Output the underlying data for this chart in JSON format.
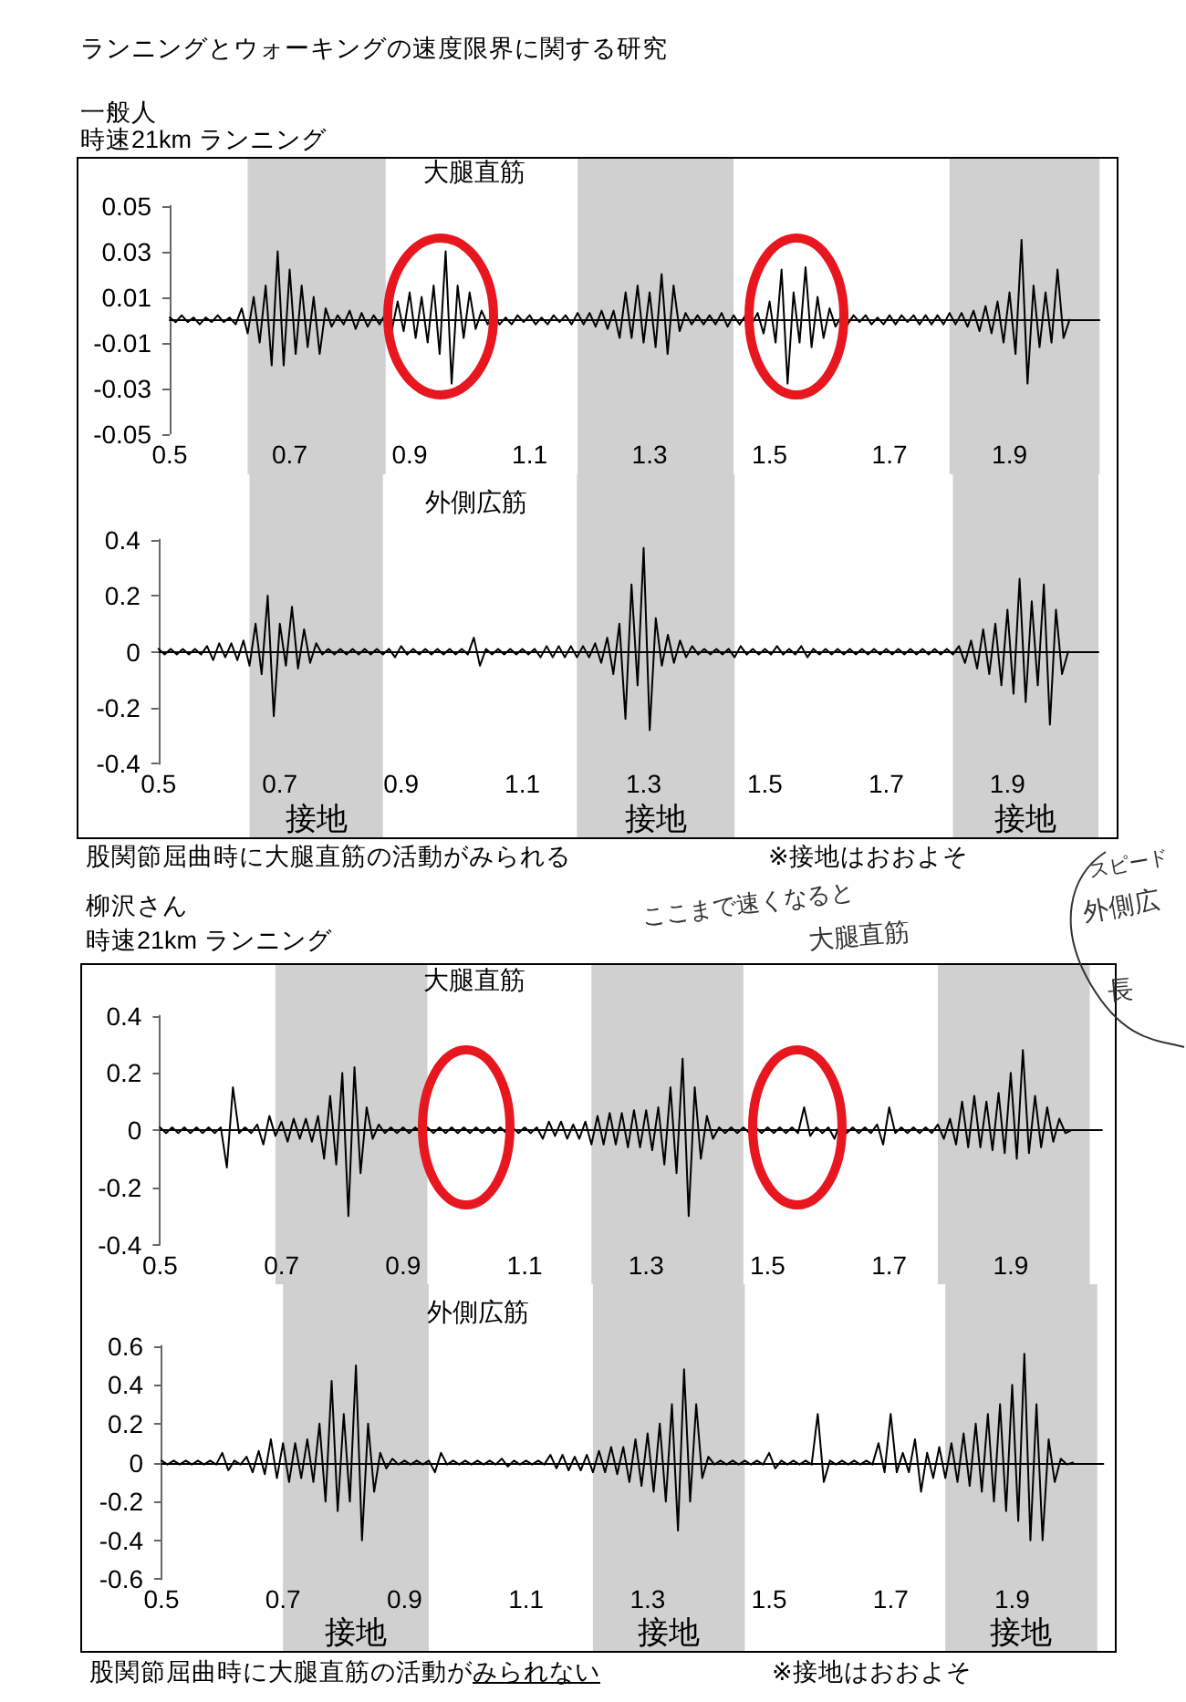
{
  "chart_data": [
    {
      "type": "line",
      "title": "大腿直筋",
      "annotations": [
        "ランニングとウォーキングの速度限界に関する研究",
        "一般人",
        "時速21km ランニング"
      ],
      "color": "#000000",
      "marker": "none",
      "x": [
        0.5,
        0.51,
        0.52,
        0.53,
        0.54,
        0.55,
        0.56,
        0.57,
        0.58,
        0.59,
        0.6,
        0.61,
        0.62,
        0.63,
        0.64,
        0.65,
        0.66,
        0.67,
        0.68,
        0.69,
        0.7,
        0.71,
        0.72,
        0.73,
        0.74,
        0.75,
        0.76,
        0.77,
        0.78,
        0.79,
        0.8,
        0.81,
        0.82,
        0.83,
        0.84,
        0.85,
        0.86,
        0.87,
        0.88,
        0.89,
        0.9,
        0.91,
        0.92,
        0.93,
        0.94,
        0.95,
        0.96,
        0.97,
        0.98,
        0.99,
        1,
        1.01,
        1.02,
        1.03,
        1.04,
        1.05,
        1.06,
        1.07,
        1.08,
        1.09,
        1.1,
        1.11,
        1.12,
        1.13,
        1.14,
        1.15,
        1.16,
        1.17,
        1.18,
        1.19,
        1.2,
        1.21,
        1.22,
        1.23,
        1.24,
        1.25,
        1.26,
        1.27,
        1.28,
        1.29,
        1.3,
        1.31,
        1.32,
        1.33,
        1.34,
        1.35,
        1.36,
        1.37,
        1.38,
        1.39,
        1.4,
        1.41,
        1.42,
        1.43,
        1.44,
        1.45,
        1.46,
        1.47,
        1.48,
        1.49,
        1.5,
        1.51,
        1.52,
        1.53,
        1.54,
        1.55,
        1.56,
        1.57,
        1.58,
        1.59,
        1.6,
        1.61,
        1.62,
        1.63,
        1.64,
        1.65,
        1.66,
        1.67,
        1.68,
        1.69,
        1.7,
        1.71,
        1.72,
        1.73,
        1.74,
        1.75,
        1.76,
        1.77,
        1.78,
        1.79,
        1.8,
        1.81,
        1.82,
        1.83,
        1.84,
        1.85,
        1.86,
        1.87,
        1.88,
        1.89,
        1.9,
        1.91,
        1.92,
        1.93,
        1.94,
        1.95,
        1.96,
        1.97,
        1.98,
        1.99,
        2
      ],
      "values": [
        0.001,
        -0.001,
        0.002,
        -0.001,
        0.001,
        -0.002,
        0.001,
        -0.001,
        0.002,
        -0.001,
        0.001,
        -0.002,
        0.005,
        -0.006,
        0.01,
        -0.01,
        0.015,
        -0.02,
        0.03,
        -0.02,
        0.022,
        -0.015,
        0.015,
        -0.012,
        0.01,
        -0.015,
        0.005,
        -0.003,
        0.002,
        -0.002,
        0.004,
        -0.004,
        0.003,
        -0.003,
        0.002,
        -0.002,
        0.003,
        -0.005,
        0.008,
        -0.005,
        0.012,
        -0.008,
        0.01,
        -0.01,
        0.015,
        -0.015,
        0.03,
        -0.028,
        0.015,
        -0.008,
        0.012,
        -0.004,
        0.004,
        -0.002,
        0.002,
        -0.002,
        0.001,
        -0.002,
        0.002,
        -0.001,
        0.002,
        -0.002,
        0.001,
        -0.002,
        0.002,
        -0.001,
        0.002,
        -0.002,
        0.003,
        -0.002,
        0.003,
        -0.003,
        0.004,
        -0.004,
        0.004,
        -0.008,
        0.012,
        -0.008,
        0.015,
        -0.01,
        0.012,
        -0.012,
        0.02,
        -0.015,
        0.015,
        -0.005,
        0.003,
        -0.002,
        0.002,
        -0.002,
        0.002,
        -0.002,
        0.003,
        -0.003,
        0.002,
        -0.002,
        0.002,
        -0.002,
        0.003,
        -0.006,
        0.008,
        -0.01,
        0.022,
        -0.028,
        0.012,
        -0.01,
        0.023,
        -0.012,
        0.01,
        -0.008,
        0.005,
        -0.003,
        0.002,
        -0.002,
        0.002,
        -0.001,
        0.002,
        -0.002,
        0.001,
        -0.002,
        0.002,
        -0.002,
        0.002,
        -0.001,
        0.002,
        -0.002,
        0.002,
        -0.002,
        0.002,
        -0.002,
        0.003,
        -0.002,
        0.003,
        -0.003,
        0.004,
        -0.005,
        0.006,
        -0.006,
        0.008,
        -0.01,
        0.012,
        -0.015,
        0.035,
        -0.028,
        0.015,
        -0.012,
        0.012,
        -0.01,
        0.022,
        -0.008,
        0
      ],
      "xlim": [
        0.5,
        2.05
      ],
      "xticks": [
        0.5,
        0.7,
        0.9,
        1.1,
        1.3,
        1.5,
        1.7,
        1.9
      ],
      "ylim": [
        -0.05,
        0.05
      ],
      "yticks": [
        -0.05,
        -0.03,
        -0.01,
        0.01,
        0.03,
        0.05
      ],
      "bands": [
        {
          "axis": "x",
          "from": 0.63,
          "to": 0.86,
          "color": "#d0d0d0"
        },
        {
          "axis": "x",
          "from": 1.18,
          "to": 1.44,
          "color": "#d0d0d0"
        },
        {
          "axis": "x",
          "from": 1.8,
          "to": 2.05,
          "color": "#d0d0d0"
        }
      ]
    },
    {
      "type": "line",
      "title": "外側広筋",
      "annotations": [
        "股関節屈曲時に大腿直筋の活動がみられる",
        "※接地はおおよそ"
      ],
      "color": "#000000",
      "marker": "none",
      "x": [
        0.5,
        0.51,
        0.52,
        0.53,
        0.54,
        0.55,
        0.56,
        0.57,
        0.58,
        0.59,
        0.6,
        0.61,
        0.62,
        0.63,
        0.64,
        0.65,
        0.66,
        0.67,
        0.68,
        0.69,
        0.7,
        0.71,
        0.72,
        0.73,
        0.74,
        0.75,
        0.76,
        0.77,
        0.78,
        0.79,
        0.8,
        0.81,
        0.82,
        0.83,
        0.84,
        0.85,
        0.86,
        0.87,
        0.88,
        0.89,
        0.9,
        0.91,
        0.92,
        0.93,
        0.94,
        0.95,
        0.96,
        0.97,
        0.98,
        0.99,
        1,
        1.01,
        1.02,
        1.03,
        1.04,
        1.05,
        1.06,
        1.07,
        1.08,
        1.09,
        1.1,
        1.11,
        1.12,
        1.13,
        1.14,
        1.15,
        1.16,
        1.17,
        1.18,
        1.19,
        1.2,
        1.21,
        1.22,
        1.23,
        1.24,
        1.25,
        1.26,
        1.27,
        1.28,
        1.29,
        1.3,
        1.31,
        1.32,
        1.33,
        1.34,
        1.35,
        1.36,
        1.37,
        1.38,
        1.39,
        1.4,
        1.41,
        1.42,
        1.43,
        1.44,
        1.45,
        1.46,
        1.47,
        1.48,
        1.49,
        1.5,
        1.51,
        1.52,
        1.53,
        1.54,
        1.55,
        1.56,
        1.57,
        1.58,
        1.59,
        1.6,
        1.61,
        1.62,
        1.63,
        1.64,
        1.65,
        1.66,
        1.67,
        1.68,
        1.69,
        1.7,
        1.71,
        1.72,
        1.73,
        1.74,
        1.75,
        1.76,
        1.77,
        1.78,
        1.79,
        1.8,
        1.81,
        1.82,
        1.83,
        1.84,
        1.85,
        1.86,
        1.87,
        1.88,
        1.89,
        1.9,
        1.91,
        1.92,
        1.93,
        1.94,
        1.95,
        1.96,
        1.97,
        1.98,
        1.99,
        2
      ],
      "values": [
        0.01,
        -0.01,
        0.01,
        -0.01,
        0.01,
        -0.01,
        0.01,
        -0.01,
        0.02,
        -0.03,
        0.03,
        -0.02,
        0.03,
        -0.03,
        0.04,
        -0.05,
        0.1,
        -0.08,
        0.2,
        -0.23,
        0.1,
        -0.05,
        0.16,
        -0.06,
        0.08,
        -0.04,
        0.03,
        -0.01,
        0.01,
        -0.01,
        0.01,
        -0.01,
        0.01,
        -0.01,
        0.01,
        -0.01,
        0.01,
        -0.01,
        0.01,
        -0.02,
        0.02,
        -0.01,
        0.01,
        -0.01,
        0.01,
        -0.01,
        0.01,
        -0.01,
        0.01,
        -0.01,
        0.01,
        -0.01,
        0.05,
        -0.05,
        0.01,
        -0.01,
        0.01,
        -0.01,
        0.01,
        -0.01,
        0.01,
        -0.01,
        0.01,
        -0.02,
        0.02,
        -0.02,
        0.02,
        -0.02,
        0.02,
        -0.02,
        0.02,
        -0.02,
        0.03,
        -0.04,
        0.05,
        -0.08,
        0.1,
        -0.24,
        0.24,
        -0.12,
        0.37,
        -0.28,
        0.12,
        -0.05,
        0.06,
        -0.04,
        0.04,
        -0.02,
        0.02,
        -0.01,
        0.01,
        -0.01,
        0.01,
        -0.01,
        0.01,
        -0.02,
        0.02,
        -0.01,
        0.01,
        -0.01,
        0.01,
        -0.01,
        0.02,
        -0.01,
        0.01,
        -0.01,
        0.02,
        -0.02,
        0.01,
        -0.01,
        0.01,
        -0.01,
        0.01,
        -0.01,
        0.01,
        -0.01,
        0.01,
        -0.01,
        0.01,
        -0.01,
        0.01,
        -0.01,
        0.01,
        -0.01,
        0.01,
        -0.01,
        0.01,
        -0.01,
        0.01,
        -0.01,
        0.01,
        -0.01,
        0.02,
        -0.04,
        0.04,
        -0.06,
        0.08,
        -0.08,
        0.1,
        -0.12,
        0.15,
        -0.15,
        0.26,
        -0.18,
        0.18,
        -0.12,
        0.24,
        -0.26,
        0.15,
        -0.08,
        0
      ],
      "xlim": [
        0.5,
        2.05
      ],
      "xticks": [
        0.5,
        0.7,
        0.9,
        1.1,
        1.3,
        1.5,
        1.7,
        1.9
      ],
      "ylim": [
        -0.4,
        0.4
      ],
      "yticks": [
        -0.4,
        -0.2,
        0,
        0.2,
        0.4
      ],
      "bands": [
        {
          "axis": "x",
          "from": 0.65,
          "to": 0.87,
          "label": "接地",
          "color": "#d0d0d0"
        },
        {
          "axis": "x",
          "from": 1.19,
          "to": 1.45,
          "label": "接地",
          "color": "#d0d0d0"
        },
        {
          "axis": "x",
          "from": 1.81,
          "to": 2.05,
          "label": "接地",
          "color": "#d0d0d0"
        }
      ]
    },
    {
      "type": "line",
      "title": "大腿直筋",
      "annotations": [
        "柳沢さん",
        "時速21km ランニング",
        "ここまで速くなると",
        "大腿直筋",
        "スピード",
        "外側広",
        "長"
      ],
      "color": "#000000",
      "marker": "none",
      "x": [
        0.5,
        0.51,
        0.52,
        0.53,
        0.54,
        0.55,
        0.56,
        0.57,
        0.58,
        0.59,
        0.6,
        0.61,
        0.62,
        0.63,
        0.64,
        0.65,
        0.66,
        0.67,
        0.68,
        0.69,
        0.7,
        0.71,
        0.72,
        0.73,
        0.74,
        0.75,
        0.76,
        0.77,
        0.78,
        0.79,
        0.8,
        0.81,
        0.82,
        0.83,
        0.84,
        0.85,
        0.86,
        0.87,
        0.88,
        0.89,
        0.9,
        0.91,
        0.92,
        0.93,
        0.94,
        0.95,
        0.96,
        0.97,
        0.98,
        0.99,
        1,
        1.01,
        1.02,
        1.03,
        1.04,
        1.05,
        1.06,
        1.07,
        1.08,
        1.09,
        1.1,
        1.11,
        1.12,
        1.13,
        1.14,
        1.15,
        1.16,
        1.17,
        1.18,
        1.19,
        1.2,
        1.21,
        1.22,
        1.23,
        1.24,
        1.25,
        1.26,
        1.27,
        1.28,
        1.29,
        1.3,
        1.31,
        1.32,
        1.33,
        1.34,
        1.35,
        1.36,
        1.37,
        1.38,
        1.39,
        1.4,
        1.41,
        1.42,
        1.43,
        1.44,
        1.45,
        1.46,
        1.47,
        1.48,
        1.49,
        1.5,
        1.51,
        1.52,
        1.53,
        1.54,
        1.55,
        1.56,
        1.57,
        1.58,
        1.59,
        1.6,
        1.61,
        1.62,
        1.63,
        1.64,
        1.65,
        1.66,
        1.67,
        1.68,
        1.69,
        1.7,
        1.71,
        1.72,
        1.73,
        1.74,
        1.75,
        1.76,
        1.77,
        1.78,
        1.79,
        1.8,
        1.81,
        1.82,
        1.83,
        1.84,
        1.85,
        1.86,
        1.87,
        1.88,
        1.89,
        1.9,
        1.91,
        1.92,
        1.93,
        1.94,
        1.95,
        1.96,
        1.97,
        1.98,
        1.99,
        2
      ],
      "values": [
        0.01,
        -0.01,
        0.01,
        -0.01,
        0.01,
        -0.01,
        0.01,
        -0.01,
        0.01,
        -0.01,
        0.01,
        -0.13,
        0.15,
        -0.01,
        0.01,
        -0.01,
        0.02,
        -0.05,
        0.05,
        -0.02,
        0.03,
        -0.04,
        0.04,
        -0.03,
        0.04,
        -0.04,
        0.05,
        -0.1,
        0.12,
        -0.12,
        0.2,
        -0.3,
        0.22,
        -0.15,
        0.08,
        -0.03,
        0.02,
        -0.01,
        0.01,
        -0.01,
        0.01,
        -0.01,
        0.01,
        -0.01,
        0.01,
        -0.01,
        0.01,
        -0.01,
        0.01,
        -0.01,
        0.01,
        -0.01,
        0.01,
        -0.01,
        0.01,
        -0.01,
        0.01,
        -0.01,
        0.01,
        -0.01,
        0.01,
        -0.01,
        0.01,
        -0.03,
        0.03,
        -0.02,
        0.03,
        -0.03,
        0.02,
        -0.03,
        0.03,
        -0.05,
        0.05,
        -0.05,
        0.06,
        -0.05,
        0.06,
        -0.06,
        0.07,
        -0.06,
        0.07,
        -0.07,
        0.08,
        -0.12,
        0.15,
        -0.15,
        0.25,
        -0.3,
        0.15,
        -0.1,
        0.05,
        -0.03,
        0.01,
        -0.01,
        0.01,
        -0.01,
        0.01,
        -0.01,
        0.01,
        -0.01,
        0.01,
        -0.01,
        0.01,
        -0.01,
        0.01,
        -0.01,
        0.08,
        -0.02,
        0.01,
        -0.01,
        0.01,
        -0.03,
        0.03,
        -0.01,
        0.01,
        -0.01,
        0.01,
        -0.01,
        0.02,
        -0.05,
        0.08,
        -0.01,
        0.01,
        -0.01,
        0.01,
        -0.01,
        0.01,
        -0.01,
        0.02,
        -0.03,
        0.04,
        -0.05,
        0.1,
        -0.06,
        0.12,
        -0.06,
        0.1,
        -0.07,
        0.13,
        -0.08,
        0.2,
        -0.1,
        0.28,
        -0.08,
        0.12,
        -0.06,
        0.08,
        -0.04,
        0.04,
        -0.01,
        0
      ],
      "xlim": [
        0.5,
        2.05
      ],
      "xticks": [
        0.5,
        0.7,
        0.9,
        1.1,
        1.3,
        1.5,
        1.7,
        1.9
      ],
      "ylim": [
        -0.4,
        0.4
      ],
      "yticks": [
        -0.4,
        -0.2,
        0,
        0.2,
        0.4
      ],
      "bands": [
        {
          "axis": "x",
          "from": 0.69,
          "to": 0.94,
          "color": "#d0d0d0"
        },
        {
          "axis": "x",
          "from": 1.21,
          "to": 1.46,
          "color": "#d0d0d0"
        },
        {
          "axis": "x",
          "from": 1.78,
          "to": 2.03,
          "color": "#d0d0d0"
        }
      ]
    },
    {
      "type": "line",
      "title": "外側広筋",
      "annotations": [
        "股関節屈曲時に大腿直筋の活動が",
        "みられない",
        "※接地はおおよそ"
      ],
      "color": "#000000",
      "marker": "none",
      "x": [
        0.5,
        0.51,
        0.52,
        0.53,
        0.54,
        0.55,
        0.56,
        0.57,
        0.58,
        0.59,
        0.6,
        0.61,
        0.62,
        0.63,
        0.64,
        0.65,
        0.66,
        0.67,
        0.68,
        0.69,
        0.7,
        0.71,
        0.72,
        0.73,
        0.74,
        0.75,
        0.76,
        0.77,
        0.78,
        0.79,
        0.8,
        0.81,
        0.82,
        0.83,
        0.84,
        0.85,
        0.86,
        0.87,
        0.88,
        0.89,
        0.9,
        0.91,
        0.92,
        0.93,
        0.94,
        0.95,
        0.96,
        0.97,
        0.98,
        0.99,
        1,
        1.01,
        1.02,
        1.03,
        1.04,
        1.05,
        1.06,
        1.07,
        1.08,
        1.09,
        1.1,
        1.11,
        1.12,
        1.13,
        1.14,
        1.15,
        1.16,
        1.17,
        1.18,
        1.19,
        1.2,
        1.21,
        1.22,
        1.23,
        1.24,
        1.25,
        1.26,
        1.27,
        1.28,
        1.29,
        1.3,
        1.31,
        1.32,
        1.33,
        1.34,
        1.35,
        1.36,
        1.37,
        1.38,
        1.39,
        1.4,
        1.41,
        1.42,
        1.43,
        1.44,
        1.45,
        1.46,
        1.47,
        1.48,
        1.49,
        1.5,
        1.51,
        1.52,
        1.53,
        1.54,
        1.55,
        1.56,
        1.57,
        1.58,
        1.59,
        1.6,
        1.61,
        1.62,
        1.63,
        1.64,
        1.65,
        1.66,
        1.67,
        1.68,
        1.69,
        1.7,
        1.71,
        1.72,
        1.73,
        1.74,
        1.75,
        1.76,
        1.77,
        1.78,
        1.79,
        1.8,
        1.81,
        1.82,
        1.83,
        1.84,
        1.85,
        1.86,
        1.87,
        1.88,
        1.89,
        1.9,
        1.91,
        1.92,
        1.93,
        1.94,
        1.95,
        1.96,
        1.97,
        1.98,
        1.99,
        2
      ],
      "values": [
        0.01,
        -0.01,
        0.01,
        -0.01,
        0.01,
        -0.01,
        0.01,
        -0.01,
        0.01,
        -0.01,
        0.05,
        -0.04,
        0.01,
        -0.01,
        0.03,
        -0.05,
        0.06,
        -0.06,
        0.12,
        -0.08,
        0.1,
        -0.1,
        0.1,
        -0.08,
        0.12,
        -0.1,
        0.2,
        -0.2,
        0.42,
        -0.25,
        0.25,
        -0.2,
        0.5,
        -0.4,
        0.2,
        -0.15,
        0.05,
        -0.03,
        0.02,
        -0.01,
        0.01,
        -0.01,
        0.01,
        -0.01,
        0.01,
        -0.05,
        0.05,
        -0.01,
        0.01,
        -0.01,
        0.01,
        -0.01,
        0.01,
        -0.01,
        0.01,
        -0.01,
        0.02,
        -0.02,
        0.01,
        -0.01,
        0.01,
        -0.01,
        0.01,
        -0.01,
        0.04,
        -0.03,
        0.04,
        -0.04,
        0.03,
        -0.04,
        0.04,
        -0.05,
        0.06,
        -0.05,
        0.08,
        -0.06,
        0.08,
        -0.1,
        0.12,
        -0.12,
        0.15,
        -0.15,
        0.2,
        -0.2,
        0.3,
        -0.35,
        0.48,
        -0.2,
        0.3,
        -0.08,
        0.03,
        -0.01,
        0.01,
        -0.01,
        0.01,
        -0.01,
        0.01,
        -0.01,
        0.01,
        -0.01,
        0.05,
        -0.03,
        0.01,
        -0.01,
        0.01,
        -0.01,
        0.01,
        -0.01,
        0.25,
        -0.1,
        0.01,
        -0.01,
        0.01,
        -0.01,
        0.01,
        -0.01,
        0.01,
        -0.01,
        0.1,
        -0.05,
        0.25,
        -0.05,
        0.05,
        -0.05,
        0.12,
        -0.15,
        0.05,
        -0.08,
        0.08,
        -0.08,
        0.1,
        -0.1,
        0.15,
        -0.12,
        0.2,
        -0.15,
        0.25,
        -0.2,
        0.3,
        -0.25,
        0.4,
        -0.3,
        0.56,
        -0.4,
        0.3,
        -0.4,
        0.12,
        -0.1,
        0.02,
        -0.01,
        0
      ],
      "xlim": [
        0.5,
        2.05
      ],
      "xticks": [
        0.5,
        0.7,
        0.9,
        1.1,
        1.3,
        1.5,
        1.7,
        1.9
      ],
      "ylim": [
        -0.6,
        0.6
      ],
      "yticks": [
        -0.6,
        -0.4,
        -0.2,
        0,
        0.2,
        0.4,
        0.6
      ],
      "bands": [
        {
          "axis": "x",
          "from": 0.7,
          "to": 0.94,
          "label": "接地",
          "color": "#d0d0d0"
        },
        {
          "axis": "x",
          "from": 1.21,
          "to": 1.46,
          "label": "接地",
          "color": "#d0d0d0"
        },
        {
          "axis": "x",
          "from": 1.79,
          "to": 2.04,
          "label": "接地",
          "color": "#d0d0d0"
        }
      ]
    }
  ]
}
